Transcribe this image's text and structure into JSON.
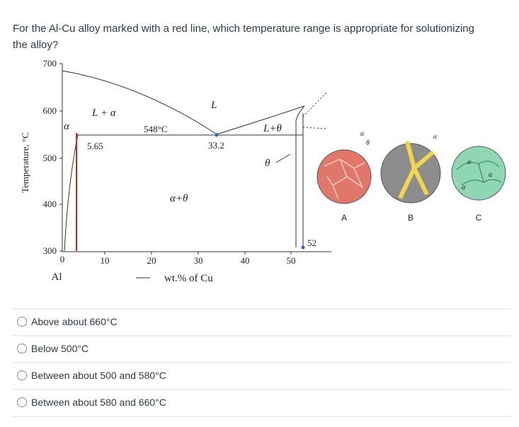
{
  "question": {
    "line1": "For the Al-Cu alloy marked with a red line, which temperature range is appropriate for solutionizing",
    "line2": "the alloy?"
  },
  "diagram": {
    "y_axis_label": "Temperature, °C",
    "y_ticks": [
      "700",
      "600",
      "500",
      "400",
      "300"
    ],
    "x_ticks": [
      "0",
      "10",
      "20",
      "30",
      "40",
      "50"
    ],
    "x_element": "Al",
    "x_axis_label": "wt.% of Cu",
    "labels": {
      "l_alpha": "L + α",
      "eutectic_temp": "548°C",
      "liquid": "L",
      "l_theta": "L+θ",
      "alpha": "α",
      "solubility": "5.65",
      "eutectic_comp": "33.2",
      "alpha_theta": "α+θ",
      "theta": "θ",
      "theta_comp": "52"
    }
  },
  "micrographs": [
    {
      "label": "A"
    },
    {
      "label": "B",
      "phases": [
        "α",
        "θ",
        "α"
      ]
    },
    {
      "label": "C",
      "phases": [
        "α",
        "α",
        "α"
      ]
    }
  ],
  "options": [
    "Above about 660°C",
    "Below 500°C",
    "Between about 500 and 580°C",
    "Between about 580 and 660°C"
  ]
}
